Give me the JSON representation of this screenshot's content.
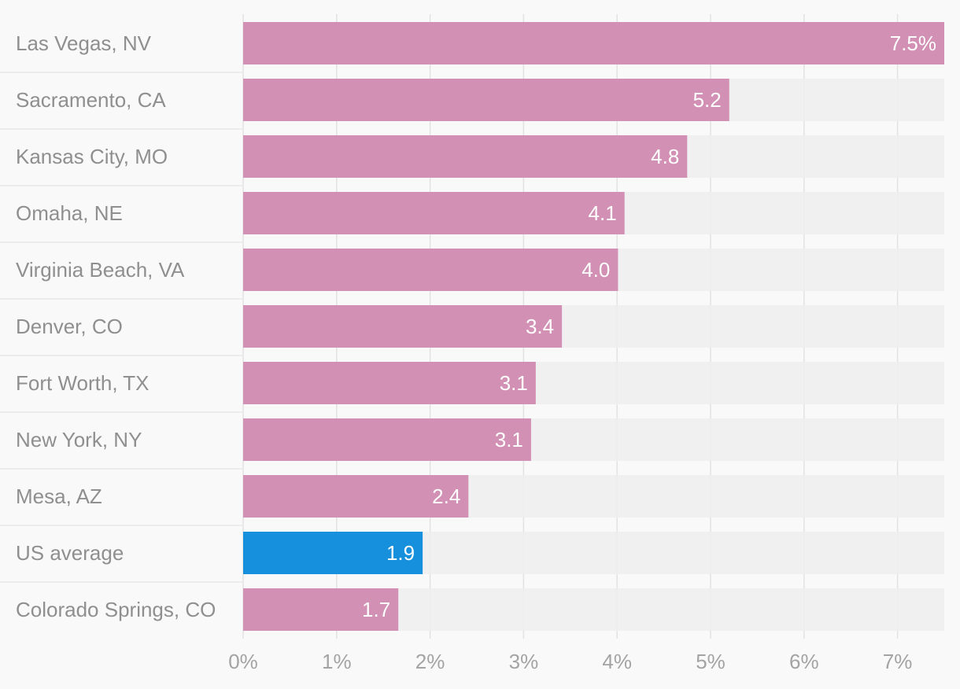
{
  "chart_data": {
    "type": "bar",
    "orientation": "horizontal",
    "categories": [
      "Las Vegas, NV",
      "Sacramento, CA",
      "Kansas City, MO",
      "Omaha, NE",
      "Virginia Beach, VA",
      "Denver, CO",
      "Fort Worth, TX",
      "New York, NY",
      "Mesa, AZ",
      "US average",
      "Colorado Springs, CO"
    ],
    "values": [
      7.5,
      5.2,
      4.75,
      4.08,
      4.01,
      3.41,
      3.13,
      3.08,
      2.41,
      1.92,
      1.66
    ],
    "value_labels": [
      "7.5%",
      "5.2",
      "4.8",
      "4.1",
      "4.0",
      "3.4",
      "3.1",
      "3.1",
      "2.4",
      "1.9",
      "1.7"
    ],
    "highlight_category": "US average",
    "xlim": [
      0,
      7.5
    ],
    "x_ticks": [
      0,
      1,
      2,
      3,
      4,
      5,
      6,
      7
    ],
    "x_tick_labels": [
      "0%",
      "1%",
      "2%",
      "3%",
      "4%",
      "5%",
      "6%",
      "7%"
    ],
    "xlabel": "",
    "ylabel": "",
    "title": "",
    "grid": true,
    "colors": {
      "bar": "#d190b4",
      "highlight": "#168fdc",
      "track": "#eeeeee",
      "grid": "#e2e2e2",
      "background": "#f9f9f9"
    }
  }
}
